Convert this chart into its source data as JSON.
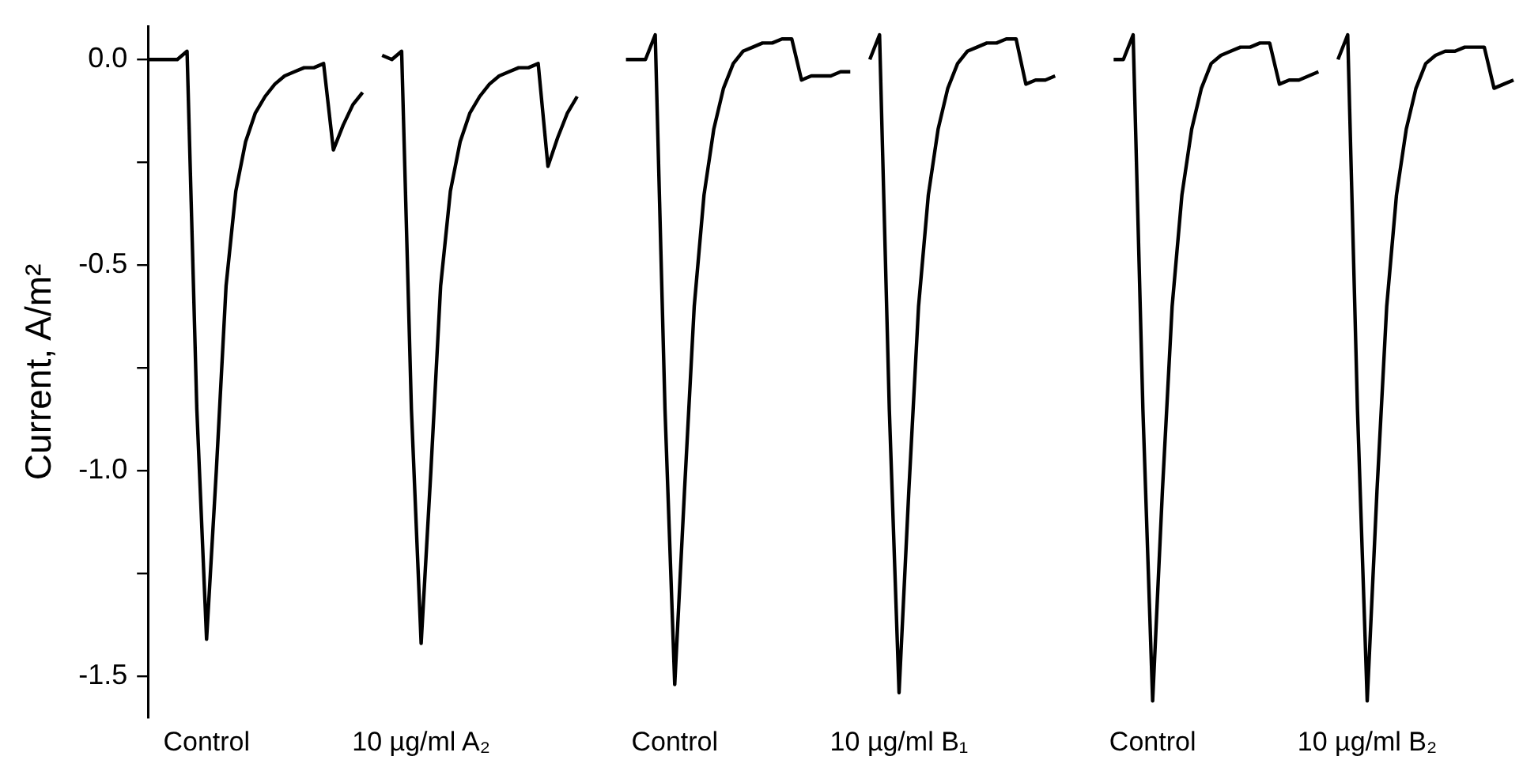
{
  "chart_data": {
    "type": "line",
    "ylabel": "Current, A/m²",
    "categories": [
      null,
      null,
      null,
      null,
      null,
      null,
      "Control",
      null,
      null,
      null,
      null,
      null,
      null,
      null,
      null,
      null,
      null,
      null,
      null,
      null,
      null,
      null,
      null,
      null,
      null,
      null,
      null,
      null,
      "10 µg/ml A₂",
      null,
      null,
      null,
      null,
      null,
      null,
      null,
      null,
      null,
      null,
      null,
      null,
      null,
      null,
      null,
      null,
      null,
      null,
      null,
      null,
      null,
      null,
      null,
      null,
      null,
      "Control",
      null,
      null,
      null,
      null,
      null,
      null,
      null,
      null,
      null,
      null,
      null,
      null,
      null,
      null,
      null,
      null,
      null,
      null,
      null,
      null,
      null,
      null,
      "10 µg/ml B₁",
      null,
      null,
      null,
      null,
      null,
      null,
      null,
      null,
      null,
      null,
      null,
      null,
      null,
      null,
      null,
      null,
      null,
      null,
      null,
      null,
      null,
      null,
      null,
      null,
      null,
      "Control",
      null,
      null,
      null,
      null,
      null,
      null,
      null,
      null,
      null,
      null,
      null,
      null,
      null,
      null,
      null,
      null,
      null,
      null,
      null,
      null,
      null,
      "10 µg/ml B₂",
      null,
      null,
      null,
      null,
      null,
      null,
      null,
      null,
      null,
      null,
      null,
      null,
      null,
      null,
      null
    ],
    "ylim": [
      -1.6,
      0.08
    ],
    "yticks": [
      {
        "value": 0,
        "label": "0.0"
      },
      {
        "value": -0.25,
        "label": null
      },
      -0.5,
      {
        "value": -0.75,
        "label": null
      },
      {
        "value": -1,
        "label": "-1.0"
      },
      {
        "value": -1.25,
        "label": null
      },
      -1.5
    ],
    "grid": false,
    "series": [
      {
        "color": "#000000",
        "values": [
          0,
          0,
          0,
          0,
          0.02,
          -0.85,
          -1.41,
          -1.0,
          -0.55,
          -0.32,
          -0.2,
          -0.13,
          -0.09,
          -0.06,
          -0.04,
          -0.03,
          -0.02,
          -0.02,
          -0.01,
          -0.22,
          -0.16,
          -0.11,
          -0.08,
          null,
          0.01,
          0,
          0.02,
          -0.85,
          -1.42,
          -1.0,
          -0.55,
          -0.32,
          -0.2,
          -0.13,
          -0.09,
          -0.06,
          -0.04,
          -0.03,
          -0.02,
          -0.02,
          -0.01,
          -0.26,
          -0.19,
          -0.13,
          -0.09,
          null,
          null,
          null,
          null,
          0,
          0,
          0,
          0.06,
          -0.85,
          -1.52,
          -1.05,
          -0.6,
          -0.33,
          -0.17,
          -0.07,
          -0.01,
          0.02,
          0.03,
          0.04,
          0.04,
          0.05,
          0.05,
          -0.05,
          -0.04,
          -0.04,
          -0.04,
          -0.03,
          -0.03,
          null,
          0,
          0.06,
          -0.85,
          -1.54,
          -1.05,
          -0.6,
          -0.33,
          -0.17,
          -0.07,
          -0.01,
          0.02,
          0.03,
          0.04,
          0.04,
          0.05,
          0.05,
          -0.06,
          -0.05,
          -0.05,
          -0.04,
          null,
          null,
          null,
          null,
          null,
          0,
          0,
          0.06,
          -0.85,
          -1.56,
          -1.05,
          -0.6,
          -0.33,
          -0.17,
          -0.07,
          -0.01,
          0.01,
          0.02,
          0.03,
          0.03,
          0.04,
          0.04,
          -0.06,
          -0.05,
          -0.05,
          -0.04,
          -0.03,
          null,
          0,
          0.06,
          -0.85,
          -1.56,
          -1.05,
          -0.6,
          -0.33,
          -0.17,
          -0.07,
          -0.01,
          0.01,
          0.02,
          0.02,
          0.03,
          0.03,
          0.03,
          -0.07,
          -0.06,
          -0.05
        ]
      }
    ]
  }
}
